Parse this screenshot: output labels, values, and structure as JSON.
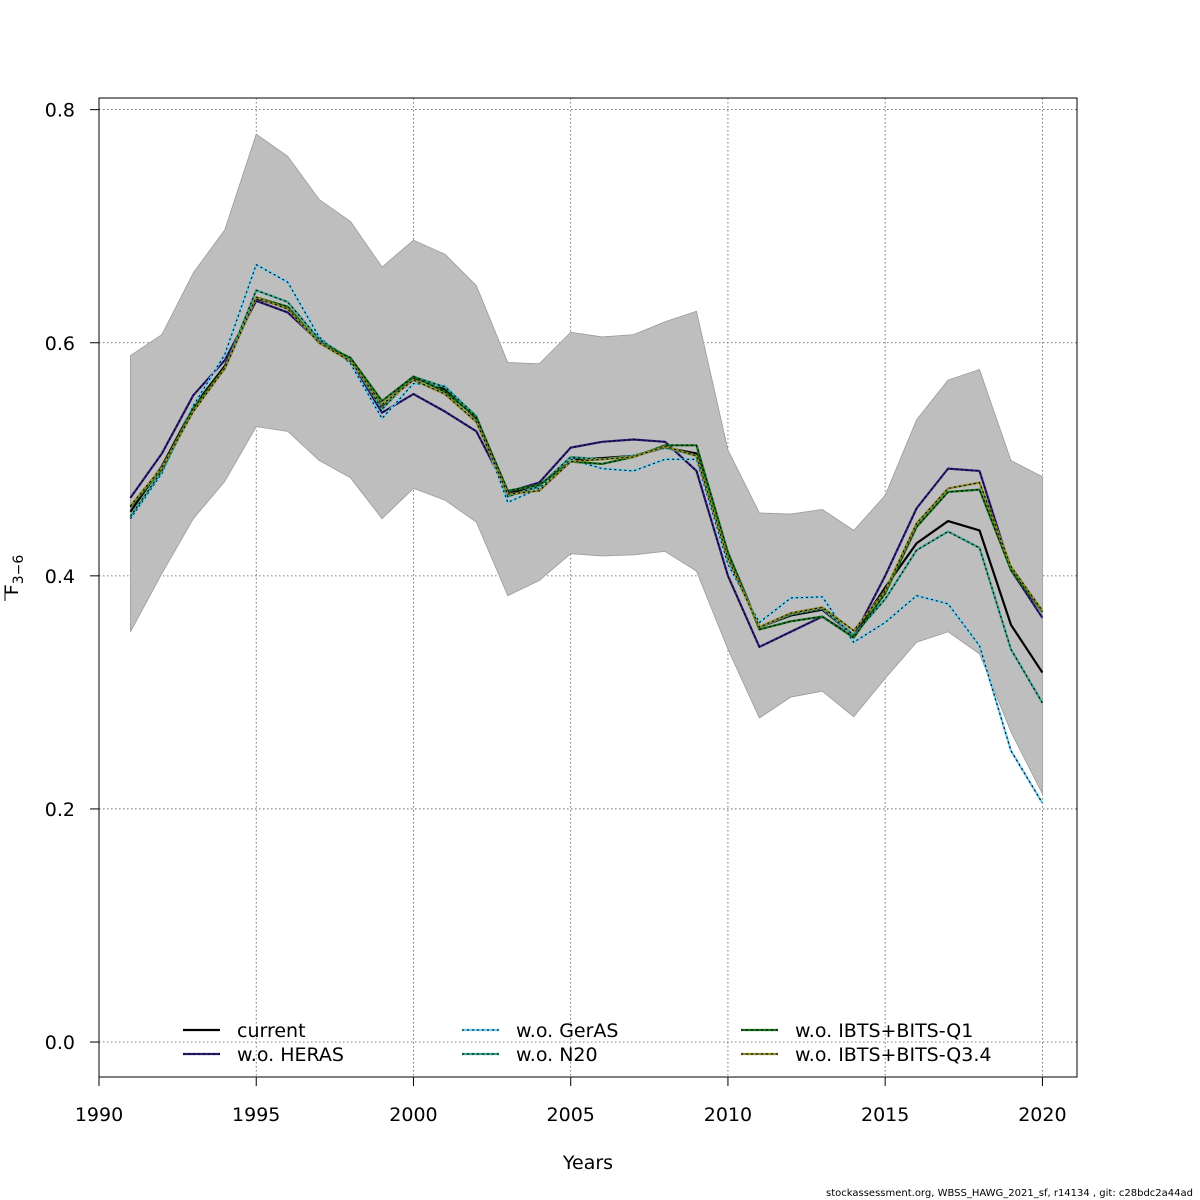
{
  "chart_data": {
    "type": "line",
    "xlabel": "Years",
    "ylabel_main": "F",
    "ylabel_sub": "3−6",
    "xlim": [
      1990,
      2021.1
    ],
    "ylim": [
      -0.03,
      0.81
    ],
    "xticks": [
      "1990",
      "1995",
      "2000",
      "2005",
      "2010",
      "2015",
      "2020"
    ],
    "yticks": [
      "0.0",
      "0.2",
      "0.4",
      "0.6",
      "0.8"
    ],
    "grid": true,
    "legend_position": "bottom",
    "x": [
      1991,
      1992,
      1993,
      1994,
      1995,
      1996,
      1997,
      1998,
      1999,
      2000,
      2001,
      2002,
      2003,
      2004,
      2005,
      2006,
      2007,
      2008,
      2009,
      2010,
      2011,
      2012,
      2013,
      2014,
      2015,
      2016,
      2017,
      2018,
      2019,
      2020
    ],
    "confidence_band": {
      "color": "#bebebe",
      "upper": [
        0.589,
        0.607,
        0.66,
        0.697,
        0.779,
        0.76,
        0.723,
        0.704,
        0.665,
        0.688,
        0.676,
        0.649,
        0.583,
        0.582,
        0.609,
        0.605,
        0.607,
        0.618,
        0.627,
        0.508,
        0.454,
        0.453,
        0.457,
        0.439,
        0.469,
        0.534,
        0.568,
        0.577,
        0.499,
        0.485
      ],
      "lower": [
        0.352,
        0.402,
        0.449,
        0.481,
        0.528,
        0.524,
        0.499,
        0.484,
        0.449,
        0.475,
        0.465,
        0.446,
        0.383,
        0.396,
        0.419,
        0.417,
        0.418,
        0.421,
        0.404,
        0.337,
        0.278,
        0.296,
        0.301,
        0.279,
        0.312,
        0.343,
        0.352,
        0.333,
        0.266,
        0.213
      ]
    },
    "series": [
      {
        "name": "current",
        "color": "#000000",
        "dashed": false,
        "values": [
          0.455,
          0.494,
          0.545,
          0.58,
          0.638,
          0.63,
          0.6,
          0.585,
          0.546,
          0.57,
          0.56,
          0.535,
          0.471,
          0.476,
          0.5,
          0.501,
          0.503,
          0.51,
          0.505,
          0.42,
          0.356,
          0.366,
          0.371,
          0.349,
          0.39,
          0.428,
          0.447,
          0.439,
          0.358,
          0.317
        ]
      },
      {
        "name": "w.o. HERAS",
        "color": "#2d1c7a",
        "dashed": true,
        "values": [
          0.467,
          0.505,
          0.555,
          0.585,
          0.636,
          0.626,
          0.601,
          0.585,
          0.54,
          0.556,
          0.541,
          0.524,
          0.472,
          0.48,
          0.51,
          0.515,
          0.517,
          0.515,
          0.49,
          0.4,
          0.339,
          0.352,
          0.365,
          0.348,
          0.4,
          0.458,
          0.492,
          0.49,
          0.405,
          0.364
        ]
      },
      {
        "name": "w.o. GerAS",
        "color": "#6ecbee",
        "dashed": true,
        "values": [
          0.449,
          0.488,
          0.546,
          0.59,
          0.667,
          0.652,
          0.605,
          0.582,
          0.535,
          0.565,
          0.563,
          0.537,
          0.463,
          0.475,
          0.5,
          0.492,
          0.49,
          0.5,
          0.5,
          0.41,
          0.36,
          0.381,
          0.382,
          0.343,
          0.36,
          0.383,
          0.376,
          0.34,
          0.25,
          0.205
        ]
      },
      {
        "name": "w.o. N20",
        "color": "#3aa18d",
        "dashed": true,
        "values": [
          0.451,
          0.49,
          0.543,
          0.578,
          0.645,
          0.635,
          0.603,
          0.586,
          0.543,
          0.571,
          0.562,
          0.537,
          0.468,
          0.477,
          0.502,
          0.5,
          0.503,
          0.51,
          0.503,
          0.418,
          0.356,
          0.367,
          0.372,
          0.349,
          0.38,
          0.422,
          0.438,
          0.424,
          0.337,
          0.291
        ]
      },
      {
        "name": "w.o. IBTS+BITS-Q1",
        "color": "#13731b",
        "dashed": true,
        "values": [
          0.459,
          0.492,
          0.544,
          0.578,
          0.639,
          0.631,
          0.6,
          0.587,
          0.55,
          0.571,
          0.558,
          0.536,
          0.473,
          0.478,
          0.498,
          0.496,
          0.502,
          0.512,
          0.512,
          0.42,
          0.354,
          0.361,
          0.365,
          0.347,
          0.385,
          0.442,
          0.472,
          0.474,
          0.405,
          0.369
        ]
      },
      {
        "name": "w.o. IBTS+BITS-Q3.4",
        "color": "#8c8b2b",
        "dashed": true,
        "values": [
          0.46,
          0.493,
          0.541,
          0.578,
          0.639,
          0.629,
          0.6,
          0.584,
          0.547,
          0.568,
          0.556,
          0.532,
          0.47,
          0.473,
          0.498,
          0.5,
          0.502,
          0.511,
          0.503,
          0.415,
          0.356,
          0.368,
          0.373,
          0.353,
          0.387,
          0.445,
          0.475,
          0.48,
          0.408,
          0.37
        ]
      }
    ]
  },
  "footer": "stockassessment.org, WBSS_HAWG_2021_sf, r14134 , git: c28bdc2a44ad"
}
